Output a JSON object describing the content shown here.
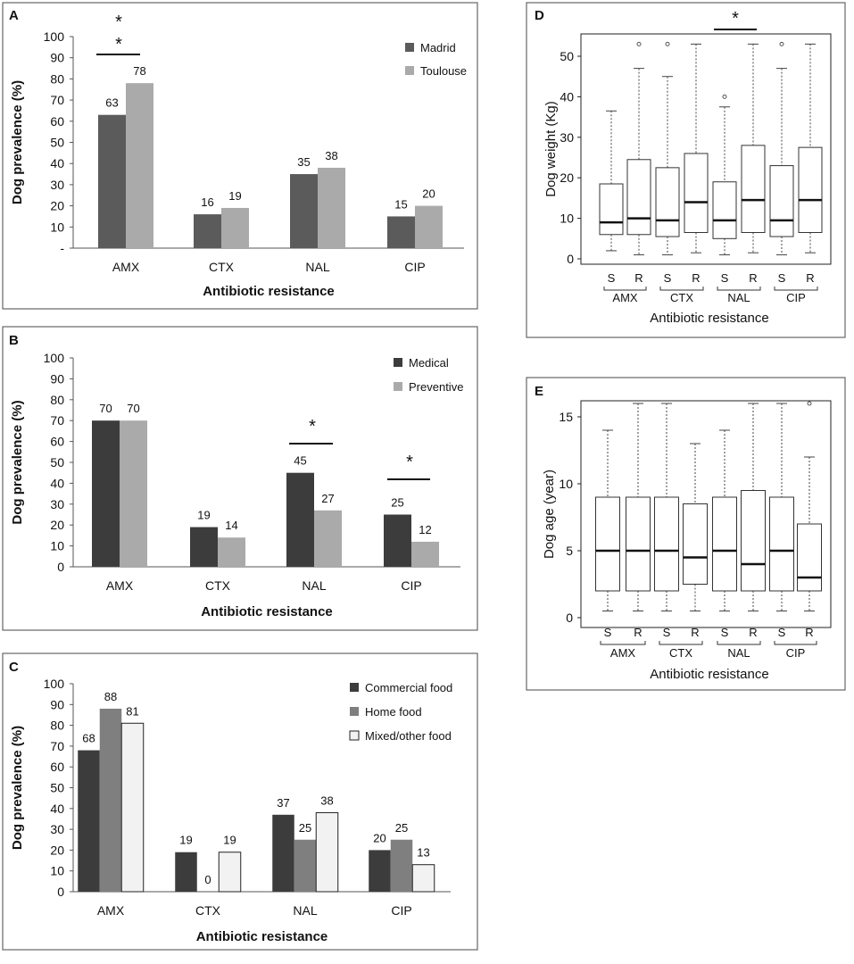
{
  "colors": {
    "dark": "#3c3c3c",
    "madrid": "#5b5b5b",
    "light": "#aaaaaa",
    "home": "#7f7f7f",
    "mixed": "#f2f2f2"
  },
  "chart_data": [
    {
      "panel": "A",
      "type": "bar",
      "categories": [
        "AMX",
        "CTX",
        "NAL",
        "CIP"
      ],
      "series": [
        {
          "name": "Madrid",
          "values": [
            63,
            16,
            35,
            15
          ],
          "color": "#5b5b5b"
        },
        {
          "name": "Toulouse",
          "values": [
            78,
            19,
            38,
            20
          ],
          "color": "#aaaaaa"
        }
      ],
      "data_labels": [
        [
          "63",
          "16",
          "35",
          "15"
        ],
        [
          "78",
          "19",
          "38",
          "20"
        ]
      ],
      "xlabel": "Antibiotic resistance",
      "ylabel": "Dog prevalence (%)",
      "ylim": [
        0,
        100
      ],
      "yticks": [
        "-",
        "10",
        "20",
        "30",
        "40",
        "50",
        "60",
        "70",
        "80",
        "90",
        "100"
      ],
      "legend_position": "top-right",
      "significance": [
        {
          "category": "AMX",
          "marks": [
            "*",
            "*"
          ]
        }
      ]
    },
    {
      "panel": "B",
      "type": "bar",
      "categories": [
        "AMX",
        "CTX",
        "NAL",
        "CIP"
      ],
      "series": [
        {
          "name": "Medical",
          "values": [
            70,
            19,
            45,
            25
          ],
          "color": "#3c3c3c"
        },
        {
          "name": "Preventive",
          "values": [
            70,
            14,
            27,
            12
          ],
          "color": "#aaaaaa"
        }
      ],
      "data_labels": [
        [
          "70",
          "19",
          "45",
          "25"
        ],
        [
          "70",
          "14",
          "27",
          "12"
        ]
      ],
      "xlabel": "Antibiotic resistance",
      "ylabel": "Dog prevalence (%)",
      "ylim": [
        0,
        100
      ],
      "yticks": [
        "0",
        "10",
        "20",
        "30",
        "40",
        "50",
        "60",
        "70",
        "80",
        "90",
        "100"
      ],
      "legend_position": "top-right",
      "significance": [
        {
          "category": "NAL",
          "marks": [
            "*"
          ]
        },
        {
          "category": "CIP",
          "marks": [
            "*"
          ]
        }
      ]
    },
    {
      "panel": "C",
      "type": "bar",
      "categories": [
        "AMX",
        "CTX",
        "NAL",
        "CIP"
      ],
      "series": [
        {
          "name": "Commercial food",
          "values": [
            68,
            19,
            37,
            20
          ],
          "color": "#3c3c3c"
        },
        {
          "name": "Home food",
          "values": [
            88,
            0,
            25,
            25
          ],
          "color": "#7f7f7f"
        },
        {
          "name": "Mixed/other food",
          "values": [
            81,
            19,
            38,
            13
          ],
          "color": "#f2f2f2"
        }
      ],
      "data_labels": [
        [
          "68",
          "19",
          "37",
          "20"
        ],
        [
          "88",
          "0",
          "25",
          "25"
        ],
        [
          "81",
          "19",
          "38",
          "13"
        ]
      ],
      "xlabel": "Antibiotic resistance",
      "ylabel": "Dog prevalence (%)",
      "ylim": [
        0,
        100
      ],
      "yticks": [
        "0",
        "10",
        "20",
        "30",
        "40",
        "50",
        "60",
        "70",
        "80",
        "90",
        "100"
      ],
      "legend_position": "top-right",
      "significance": []
    },
    {
      "panel": "D",
      "type": "box",
      "groups": [
        "AMX",
        "CTX",
        "NAL",
        "CIP"
      ],
      "subgroups": [
        "S",
        "R"
      ],
      "boxes": [
        {
          "group": "AMX",
          "sub": "S",
          "min": 2,
          "q1": 6,
          "median": 9,
          "q3": 18.5,
          "max": 36.5,
          "outliers": []
        },
        {
          "group": "AMX",
          "sub": "R",
          "min": 1,
          "q1": 6,
          "median": 10,
          "q3": 24.5,
          "max": 47,
          "outliers": [
            53
          ]
        },
        {
          "group": "CTX",
          "sub": "S",
          "min": 1,
          "q1": 5.5,
          "median": 9.5,
          "q3": 22.5,
          "max": 45,
          "outliers": [
            53
          ]
        },
        {
          "group": "CTX",
          "sub": "R",
          "min": 1.5,
          "q1": 6.5,
          "median": 14,
          "q3": 26,
          "max": 53,
          "outliers": []
        },
        {
          "group": "NAL",
          "sub": "S",
          "min": 1,
          "q1": 5,
          "median": 9.5,
          "q3": 19,
          "max": 37.5,
          "outliers": [
            40
          ]
        },
        {
          "group": "NAL",
          "sub": "R",
          "min": 1.5,
          "q1": 6.5,
          "median": 14.5,
          "q3": 28,
          "max": 53,
          "outliers": []
        },
        {
          "group": "CIP",
          "sub": "S",
          "min": 1,
          "q1": 5.5,
          "median": 9.5,
          "q3": 23,
          "max": 47,
          "outliers": [
            53
          ]
        },
        {
          "group": "CIP",
          "sub": "R",
          "min": 1.5,
          "q1": 6.5,
          "median": 14.5,
          "q3": 27.5,
          "max": 53,
          "outliers": []
        }
      ],
      "xlabel": "Antibiotic resistance",
      "ylabel": "Dog weight (Kg)",
      "ylim": [
        0,
        56
      ],
      "yticks": [
        "0",
        "10",
        "20",
        "30",
        "40",
        "50"
      ],
      "significance": [
        {
          "category": "NAL",
          "marks": [
            "*"
          ]
        }
      ]
    },
    {
      "panel": "E",
      "type": "box",
      "groups": [
        "AMX",
        "CTX",
        "NAL",
        "CIP"
      ],
      "subgroups": [
        "S",
        "R"
      ],
      "boxes": [
        {
          "group": "AMX",
          "sub": "S",
          "min": 0.5,
          "q1": 2,
          "median": 5,
          "q3": 9,
          "max": 14,
          "outliers": []
        },
        {
          "group": "AMX",
          "sub": "R",
          "min": 0.5,
          "q1": 2,
          "median": 5,
          "q3": 9,
          "max": 16,
          "outliers": []
        },
        {
          "group": "CTX",
          "sub": "S",
          "min": 0.5,
          "q1": 2,
          "median": 5,
          "q3": 9,
          "max": 16,
          "outliers": []
        },
        {
          "group": "CTX",
          "sub": "R",
          "min": 0.5,
          "q1": 2.5,
          "median": 4.5,
          "q3": 8.5,
          "max": 13,
          "outliers": []
        },
        {
          "group": "NAL",
          "sub": "S",
          "min": 0.5,
          "q1": 2,
          "median": 5,
          "q3": 9,
          "max": 14,
          "outliers": []
        },
        {
          "group": "NAL",
          "sub": "R",
          "min": 0.5,
          "q1": 2,
          "median": 4,
          "q3": 9.5,
          "max": 16,
          "outliers": []
        },
        {
          "group": "CIP",
          "sub": "S",
          "min": 0.5,
          "q1": 2,
          "median": 5,
          "q3": 9,
          "max": 16,
          "outliers": []
        },
        {
          "group": "CIP",
          "sub": "R",
          "min": 0.5,
          "q1": 2,
          "median": 3,
          "q3": 7,
          "max": 12,
          "outliers": [
            16
          ]
        }
      ],
      "xlabel": "Antibiotic resistance",
      "ylabel": "Dog age (year)",
      "ylim": [
        0,
        16.8
      ],
      "yticks": [
        "0",
        "5",
        "10",
        "15"
      ],
      "significance": []
    }
  ]
}
